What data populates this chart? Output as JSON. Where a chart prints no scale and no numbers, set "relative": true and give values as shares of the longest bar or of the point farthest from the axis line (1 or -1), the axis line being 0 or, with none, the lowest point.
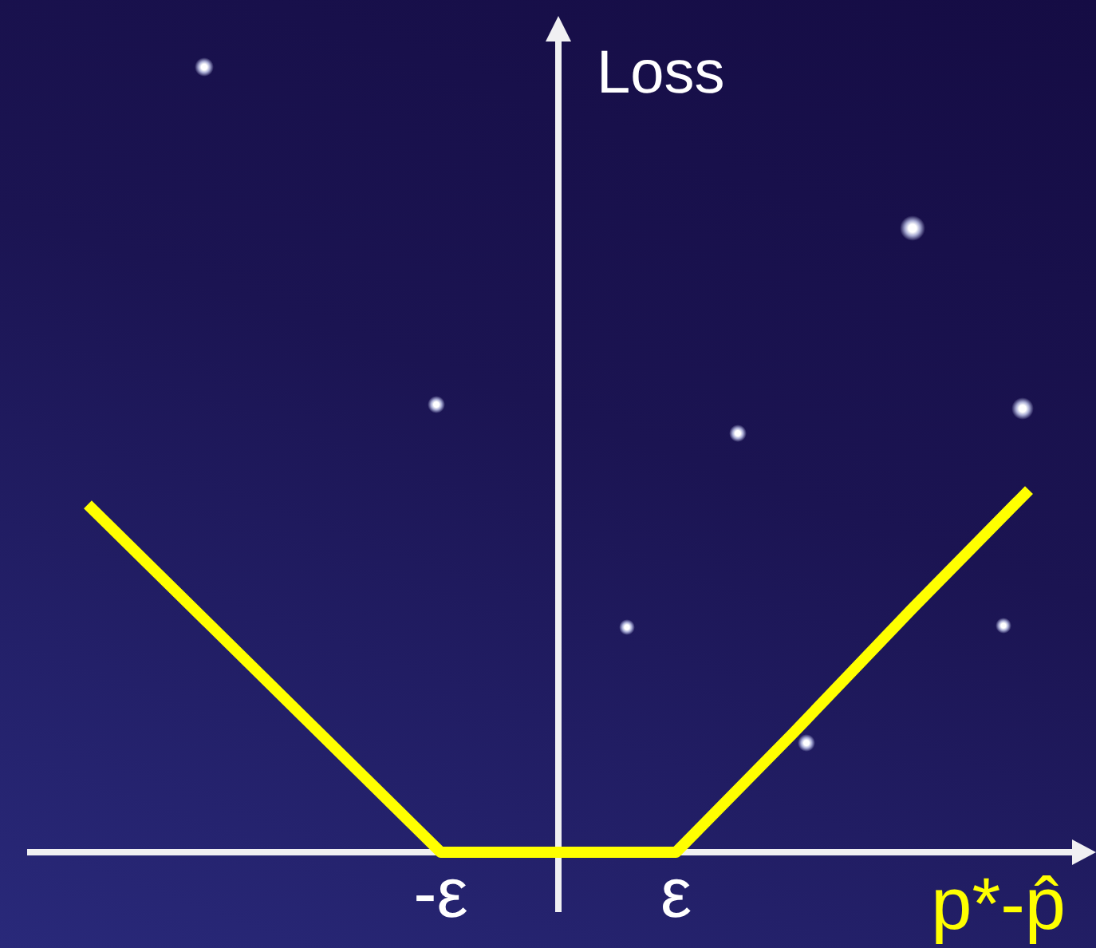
{
  "chart_data": {
    "type": "line",
    "xlabel": "p*-p̂",
    "annotations": [
      "Loss"
    ],
    "categories": [
      null,
      null,
      null,
      "-ε",
      null,
      "ε",
      null,
      null,
      null
    ],
    "series": [
      {
        "color": "#ffff00",
        "values": [
          0.96,
          0.64,
          0.32,
          0,
          0,
          0,
          0.33,
          0.67,
          1
        ]
      }
    ],
    "relative": true,
    "marker": "none",
    "line_style": "solid",
    "legend": false
  }
}
